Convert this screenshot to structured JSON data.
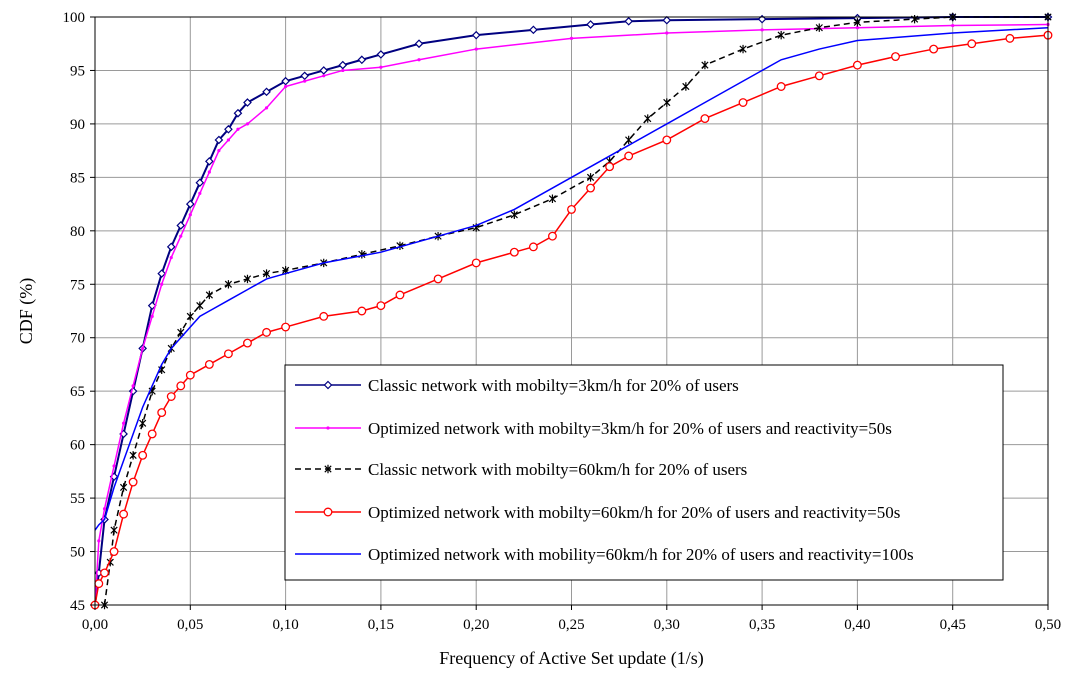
{
  "chart_data": {
    "type": "line",
    "title": "",
    "xlabel": "Frequency of Active Set update (1/s)",
    "ylabel": "CDF (%)",
    "xlim": [
      0,
      0.5
    ],
    "ylim": [
      45,
      100
    ],
    "x_ticks": [
      "0,00",
      "0,05",
      "0,10",
      "0,15",
      "0,20",
      "0,25",
      "0,30",
      "0,35",
      "0,40",
      "0,45",
      "0,50"
    ],
    "y_ticks": [
      "45",
      "50",
      "55",
      "60",
      "65",
      "70",
      "75",
      "80",
      "85",
      "90",
      "95",
      "100"
    ],
    "grid": true,
    "legend_position": "bottom-right",
    "series": [
      {
        "name": "Classic network with mobilty=3km/h for 20% of users",
        "color": "#000080",
        "marker": "diamond",
        "dashed": false,
        "x": [
          0.0,
          0.002,
          0.005,
          0.01,
          0.015,
          0.02,
          0.025,
          0.03,
          0.035,
          0.04,
          0.045,
          0.05,
          0.055,
          0.06,
          0.065,
          0.07,
          0.075,
          0.08,
          0.09,
          0.1,
          0.11,
          0.12,
          0.13,
          0.14,
          0.15,
          0.17,
          0.2,
          0.23,
          0.26,
          0.28,
          0.3,
          0.35,
          0.4,
          0.45,
          0.5
        ],
        "y": [
          45,
          48,
          53,
          57,
          61,
          65,
          69,
          73,
          76,
          78.5,
          80.5,
          82.5,
          84.5,
          86.5,
          88.5,
          89.5,
          91,
          92,
          93,
          94,
          94.5,
          95,
          95.5,
          96,
          96.5,
          97.5,
          98.3,
          98.8,
          99.3,
          99.6,
          99.7,
          99.8,
          99.9,
          100,
          100
        ]
      },
      {
        "name": "Optimized network with mobilty=3km/h for 20% of users and reactivity=50s",
        "color": "#FF00FF",
        "marker": "dot",
        "dashed": false,
        "x": [
          0.0,
          0.002,
          0.005,
          0.01,
          0.015,
          0.02,
          0.025,
          0.03,
          0.035,
          0.04,
          0.045,
          0.05,
          0.055,
          0.06,
          0.065,
          0.07,
          0.075,
          0.08,
          0.09,
          0.1,
          0.11,
          0.12,
          0.13,
          0.15,
          0.17,
          0.2,
          0.25,
          0.3,
          0.35,
          0.4,
          0.45,
          0.5
        ],
        "y": [
          45,
          51,
          54,
          58,
          62,
          65.5,
          69,
          72,
          75,
          77.5,
          79.5,
          81.5,
          83.5,
          85.5,
          87.5,
          88.5,
          89.5,
          90,
          91.5,
          93.5,
          94,
          94.5,
          95,
          95.3,
          96,
          97,
          98,
          98.5,
          98.8,
          99,
          99.2,
          99.3
        ]
      },
      {
        "name": "Classic network with mobilty=60km/h for 20% of users",
        "color": "#000000",
        "marker": "star",
        "dashed": true,
        "x": [
          0.005,
          0.008,
          0.01,
          0.015,
          0.02,
          0.025,
          0.03,
          0.035,
          0.04,
          0.045,
          0.05,
          0.055,
          0.06,
          0.07,
          0.08,
          0.09,
          0.1,
          0.12,
          0.14,
          0.16,
          0.18,
          0.2,
          0.22,
          0.24,
          0.26,
          0.27,
          0.28,
          0.29,
          0.3,
          0.31,
          0.32,
          0.34,
          0.36,
          0.38,
          0.4,
          0.43,
          0.45,
          0.5
        ],
        "y": [
          45,
          49,
          52,
          56,
          59,
          62,
          65,
          67,
          69,
          70.5,
          72,
          73,
          74,
          75,
          75.5,
          76,
          76.3,
          77,
          77.8,
          78.6,
          79.5,
          80.3,
          81.5,
          83,
          85,
          86.5,
          88.5,
          90.5,
          92,
          93.5,
          95.5,
          97,
          98.3,
          99,
          99.5,
          99.8,
          100,
          100
        ]
      },
      {
        "name": "Optimized network with mobilty=60km/h for 20% of users and reactivity=50s",
        "color": "#FF0000",
        "marker": "circle",
        "dashed": false,
        "x": [
          0.0,
          0.002,
          0.005,
          0.01,
          0.015,
          0.02,
          0.025,
          0.03,
          0.035,
          0.04,
          0.045,
          0.05,
          0.06,
          0.07,
          0.08,
          0.09,
          0.1,
          0.12,
          0.14,
          0.15,
          0.16,
          0.18,
          0.2,
          0.22,
          0.23,
          0.24,
          0.25,
          0.26,
          0.27,
          0.28,
          0.3,
          0.32,
          0.34,
          0.36,
          0.38,
          0.4,
          0.42,
          0.44,
          0.46,
          0.48,
          0.5
        ],
        "y": [
          45,
          47,
          48,
          50,
          53.5,
          56.5,
          59,
          61,
          63,
          64.5,
          65.5,
          66.5,
          67.5,
          68.5,
          69.5,
          70.5,
          71,
          72,
          72.5,
          73,
          74,
          75.5,
          77,
          78,
          78.5,
          79.5,
          82,
          84,
          86,
          87,
          88.5,
          90.5,
          92,
          93.5,
          94.5,
          95.5,
          96.3,
          97,
          97.5,
          98,
          98.3
        ]
      },
      {
        "name": "Optimized network with mobility=60km/h for 20% of users and reactivity=100s",
        "color": "#0000FF",
        "marker": "none",
        "dashed": false,
        "x": [
          0.0,
          0.002,
          0.005,
          0.01,
          0.015,
          0.02,
          0.025,
          0.03,
          0.035,
          0.04,
          0.045,
          0.05,
          0.055,
          0.06,
          0.07,
          0.08,
          0.09,
          0.1,
          0.12,
          0.15,
          0.18,
          0.2,
          0.22,
          0.24,
          0.26,
          0.28,
          0.3,
          0.32,
          0.34,
          0.36,
          0.38,
          0.4,
          0.45,
          0.5
        ],
        "y": [
          52,
          52.5,
          53,
          56,
          58.5,
          61,
          63.5,
          65.5,
          67.5,
          69,
          70,
          71,
          72,
          72.5,
          73.5,
          74.5,
          75.5,
          76,
          77,
          78,
          79.5,
          80.5,
          82,
          84,
          86,
          88,
          90,
          92,
          94,
          96,
          97,
          97.8,
          98.5,
          99
        ]
      }
    ]
  }
}
